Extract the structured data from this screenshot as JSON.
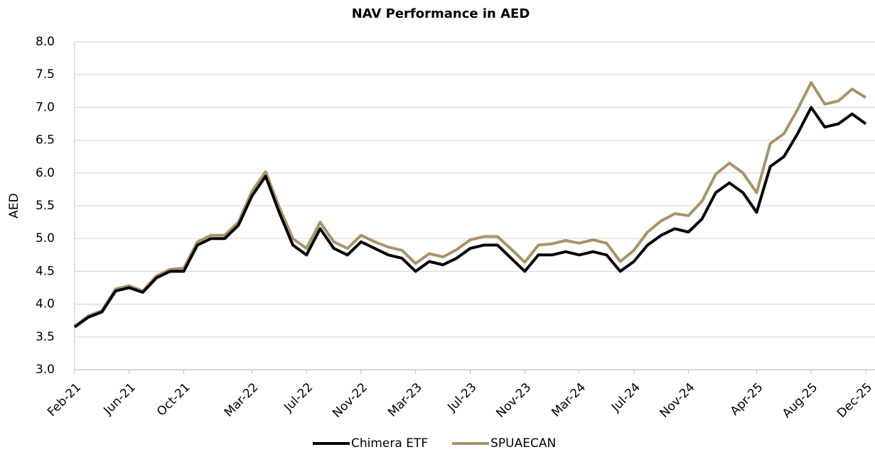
{
  "chart_data": {
    "type": "line",
    "title": "NAV Performance in AED",
    "ylabel": "AED",
    "categories": [
      "Feb-21",
      null,
      null,
      null,
      "Jun-21",
      null,
      null,
      null,
      "Oct-21",
      null,
      null,
      null,
      null,
      "Mar-22",
      null,
      null,
      null,
      "Jul-22",
      null,
      null,
      null,
      "Nov-22",
      null,
      null,
      null,
      "Mar-23",
      null,
      null,
      null,
      "Jul-23",
      null,
      null,
      null,
      "Nov-23",
      null,
      null,
      null,
      "Mar-24",
      null,
      null,
      null,
      "Jul-24",
      null,
      null,
      null,
      "Nov-24",
      null,
      null,
      null,
      null,
      "Apr-25",
      null,
      null,
      null,
      "Aug-25",
      null,
      null,
      null,
      "Dec-25"
    ],
    "series": [
      {
        "name": "Chimera ETF",
        "color": "#000000",
        "values": [
          3.65,
          3.8,
          3.88,
          4.2,
          4.25,
          4.18,
          4.4,
          4.5,
          4.5,
          4.9,
          5.0,
          5.0,
          5.2,
          5.65,
          5.95,
          5.4,
          4.9,
          4.75,
          5.15,
          4.85,
          4.75,
          4.95,
          4.85,
          4.75,
          4.7,
          4.5,
          4.65,
          4.6,
          4.7,
          4.85,
          4.9,
          4.9,
          4.7,
          4.5,
          4.75,
          4.75,
          4.8,
          4.75,
          4.8,
          4.75,
          4.5,
          4.65,
          4.9,
          5.05,
          5.15,
          5.1,
          5.3,
          5.7,
          5.85,
          5.7,
          5.4,
          6.1,
          6.25,
          6.6,
          7.0,
          6.7,
          6.75,
          6.9,
          6.75
        ]
      },
      {
        "name": "SPUAECAN",
        "color": "#a8936a",
        "values": [
          3.66,
          3.82,
          3.9,
          4.23,
          4.28,
          4.2,
          4.43,
          4.53,
          4.55,
          4.95,
          5.05,
          5.05,
          5.25,
          5.72,
          6.02,
          5.48,
          5.0,
          4.85,
          5.25,
          4.95,
          4.85,
          5.05,
          4.95,
          4.87,
          4.82,
          4.62,
          4.77,
          4.72,
          4.83,
          4.98,
          5.03,
          5.03,
          4.84,
          4.64,
          4.9,
          4.92,
          4.97,
          4.93,
          4.98,
          4.93,
          4.65,
          4.82,
          5.1,
          5.27,
          5.38,
          5.35,
          5.57,
          5.98,
          6.15,
          6.0,
          5.7,
          6.45,
          6.6,
          6.97,
          7.38,
          7.05,
          7.1,
          7.28,
          7.15
        ]
      }
    ],
    "ylim": [
      3.0,
      8.0
    ],
    "yticks": [
      {
        "value": 3,
        "label": "3.0"
      },
      {
        "value": 3.5,
        "label": "3.5"
      },
      {
        "value": 4,
        "label": "4.0"
      },
      {
        "value": 4.5,
        "label": "4.5"
      },
      {
        "value": 5,
        "label": "5.0"
      },
      {
        "value": 5.5,
        "label": "5.5"
      },
      {
        "value": 6,
        "label": "6.0"
      },
      {
        "value": 6.5,
        "label": "6.5"
      },
      {
        "value": 7,
        "label": "7.0"
      },
      {
        "value": 7.5,
        "label": "7.5"
      },
      {
        "value": 8,
        "label": "8.0"
      }
    ],
    "grid": true,
    "legend": "bottom"
  }
}
